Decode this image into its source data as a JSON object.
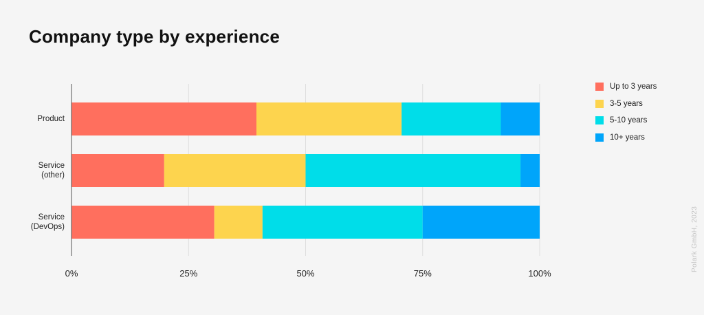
{
  "chart_data": {
    "type": "bar",
    "orientation": "horizontal",
    "stacked": true,
    "title": "Company type by experience",
    "categories": [
      "Product",
      "Service\n(other)",
      "Service\n(DevOps)"
    ],
    "series": [
      {
        "name": "Up to 3 years",
        "color": "#ff6f5e",
        "values": [
          39.5,
          19.8,
          30.5
        ]
      },
      {
        "name": "3-5 years",
        "color": "#fdd44e",
        "values": [
          31.0,
          30.2,
          10.3
        ]
      },
      {
        "name": "5-10 years",
        "color": "#00dde9",
        "values": [
          21.2,
          45.9,
          34.2
        ]
      },
      {
        "name": "10+ years",
        "color": "#00a5fa",
        "values": [
          8.3,
          4.1,
          25.0
        ]
      }
    ],
    "xlim": [
      0,
      100
    ],
    "xticks": [
      0,
      25,
      50,
      75,
      100
    ],
    "xtick_labels": [
      "0%",
      "25%",
      "50%",
      "75%",
      "100%"
    ],
    "grid": true,
    "legend_position": "top-right",
    "xlabel": "",
    "ylabel": ""
  },
  "credit": "Polark GmbH, 2023"
}
